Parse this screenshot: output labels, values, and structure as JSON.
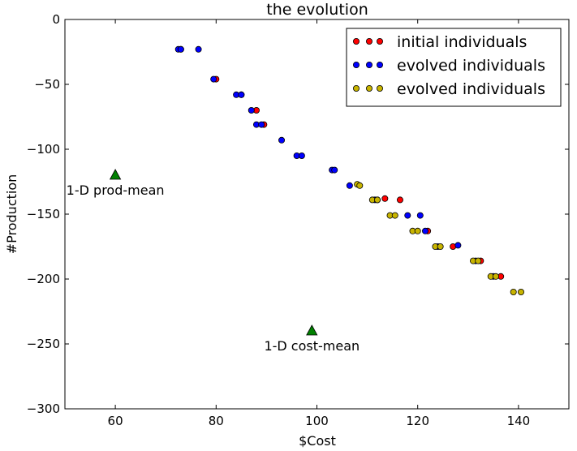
{
  "chart_data": {
    "type": "scatter",
    "title": "the evolution",
    "xlabel": "$Cost",
    "ylabel": "#Production",
    "xlim": [
      50,
      150
    ],
    "ylim": [
      -300,
      0
    ],
    "xticks": [
      60,
      80,
      100,
      120,
      140
    ],
    "yticks": [
      0,
      -50,
      -100,
      -150,
      -200,
      -250,
      -300
    ],
    "legend_position": "top-right",
    "grid": false,
    "series": [
      {
        "name": "initial individuals",
        "color": "#ff0000",
        "points": [
          [
            73,
            -23
          ],
          [
            80,
            -46
          ],
          [
            85,
            -58
          ],
          [
            88,
            -70
          ],
          [
            89.5,
            -81
          ],
          [
            113.5,
            -138
          ],
          [
            116.5,
            -139
          ],
          [
            122,
            -163
          ],
          [
            127,
            -175
          ],
          [
            132.5,
            -186
          ],
          [
            136.5,
            -198
          ]
        ]
      },
      {
        "name": "evolved individuals",
        "color": "#0000ff",
        "points": [
          [
            72.5,
            -23
          ],
          [
            73,
            -23
          ],
          [
            76.5,
            -23
          ],
          [
            79.5,
            -46
          ],
          [
            84,
            -58
          ],
          [
            85,
            -58
          ],
          [
            87,
            -70
          ],
          [
            88,
            -81
          ],
          [
            89,
            -81
          ],
          [
            93,
            -93
          ],
          [
            96,
            -105
          ],
          [
            97,
            -105
          ],
          [
            103,
            -116
          ],
          [
            103.5,
            -116
          ],
          [
            106.5,
            -128
          ],
          [
            111.5,
            -139
          ],
          [
            112,
            -139
          ],
          [
            118,
            -151
          ],
          [
            120.5,
            -151
          ],
          [
            121.5,
            -163
          ],
          [
            124,
            -175
          ],
          [
            128,
            -174
          ],
          [
            131.5,
            -186
          ],
          [
            135,
            -198
          ]
        ]
      },
      {
        "name": "evolved individuals",
        "color": "#c8b400",
        "points": [
          [
            108,
            -127
          ],
          [
            108.5,
            -128
          ],
          [
            111,
            -139
          ],
          [
            112,
            -139
          ],
          [
            114.5,
            -151
          ],
          [
            115.5,
            -151
          ],
          [
            119,
            -163
          ],
          [
            120,
            -163
          ],
          [
            123.5,
            -175
          ],
          [
            124.5,
            -175
          ],
          [
            131,
            -186
          ],
          [
            132,
            -186
          ],
          [
            134.5,
            -198
          ],
          [
            135.5,
            -198
          ],
          [
            139,
            -210
          ],
          [
            140.5,
            -210
          ]
        ]
      },
      {
        "name": "",
        "color": "#008000",
        "marker": "triangle",
        "points": [
          [
            60,
            -120
          ],
          [
            99,
            -240
          ]
        ]
      }
    ],
    "annotations": [
      {
        "text": "1-D prod-mean",
        "x": 60,
        "y": -120
      },
      {
        "text": "1-D cost-mean",
        "x": 99,
        "y": -240
      }
    ]
  }
}
